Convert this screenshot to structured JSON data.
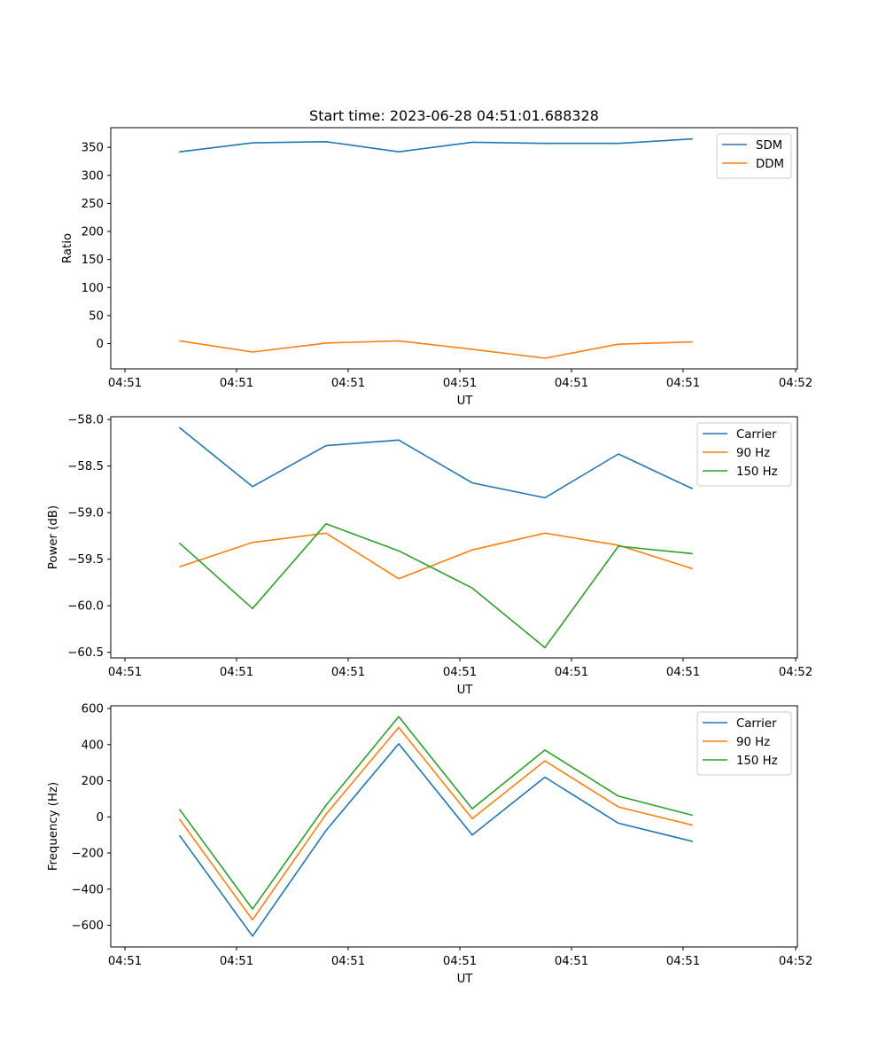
{
  "chart_data": [
    {
      "type": "line",
      "title": "Start time: 2023-06-28 04:51:01.688328",
      "xlabel": "UT",
      "ylabel": "Ratio",
      "x_tick_labels": [
        "04:51",
        "04:51",
        "04:51",
        "04:51",
        "04:51",
        "04:51",
        "04:52"
      ],
      "y_ticks": [
        0,
        50,
        100,
        150,
        200,
        250,
        300,
        350
      ],
      "ylim": [
        -45,
        385
      ],
      "legend_position": "upper right",
      "grid": false,
      "series": [
        {
          "name": "SDM",
          "color": "#1f77b4",
          "values": [
            342,
            358,
            360,
            342,
            359,
            357,
            357,
            365
          ]
        },
        {
          "name": "DDM",
          "color": "#ff7f0e",
          "values": [
            5,
            -15,
            1,
            5,
            -10,
            -26,
            -1,
            3
          ]
        }
      ]
    },
    {
      "type": "line",
      "title": "",
      "xlabel": "UT",
      "ylabel": "Power (dB)",
      "x_tick_labels": [
        "04:51",
        "04:51",
        "04:51",
        "04:51",
        "04:51",
        "04:51",
        "04:52"
      ],
      "y_ticks": [
        -60.5,
        -60.0,
        -59.5,
        -59.0,
        -58.5,
        -58.0
      ],
      "y_tick_labels": [
        "−60.5",
        "−60.0",
        "−59.5",
        "−59.0",
        "−58.5",
        "−58.0"
      ],
      "ylim": [
        -60.56,
        -57.97
      ],
      "legend_position": "upper right",
      "grid": false,
      "series": [
        {
          "name": "Carrier",
          "color": "#1f77b4",
          "values": [
            -58.09,
            -58.72,
            -58.28,
            -58.22,
            -58.68,
            -58.84,
            -58.37,
            -58.74
          ]
        },
        {
          "name": "90 Hz",
          "color": "#ff7f0e",
          "values": [
            -59.58,
            -59.32,
            -59.22,
            -59.71,
            -59.4,
            -59.22,
            -59.35,
            -59.6
          ]
        },
        {
          "name": "150 Hz",
          "color": "#2ca02c",
          "values": [
            -59.33,
            -60.03,
            -59.12,
            -59.41,
            -59.81,
            -60.45,
            -59.36,
            -59.44
          ]
        }
      ]
    },
    {
      "type": "line",
      "title": "",
      "xlabel": "UT",
      "ylabel": "Frequency (Hz)",
      "x_tick_labels": [
        "04:51",
        "04:51",
        "04:51",
        "04:51",
        "04:51",
        "04:51",
        "04:52"
      ],
      "y_ticks": [
        -600,
        -400,
        -200,
        0,
        200,
        400,
        600
      ],
      "y_tick_labels": [
        "−600",
        "−400",
        "−200",
        "0",
        "200",
        "400",
        "600"
      ],
      "ylim": [
        -720,
        615
      ],
      "legend_position": "upper right",
      "grid": false,
      "series": [
        {
          "name": "Carrier",
          "color": "#1f77b4",
          "values": [
            -105,
            -660,
            -75,
            405,
            -100,
            220,
            -35,
            -135
          ]
        },
        {
          "name": "90 Hz",
          "color": "#ff7f0e",
          "values": [
            -15,
            -570,
            15,
            495,
            -10,
            310,
            55,
            -45
          ]
        },
        {
          "name": "150 Hz",
          "color": "#2ca02c",
          "values": [
            40,
            -510,
            65,
            555,
            45,
            370,
            115,
            10
          ]
        }
      ]
    }
  ]
}
